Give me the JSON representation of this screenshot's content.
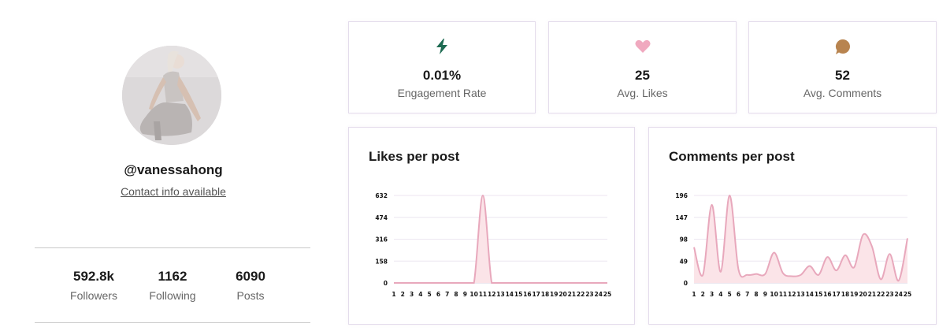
{
  "profile": {
    "handle": "@vanessahong",
    "contact_link": "Contact info available",
    "stats": [
      {
        "value": "592.8k",
        "label": "Followers"
      },
      {
        "value": "1162",
        "label": "Following"
      },
      {
        "value": "6090",
        "label": "Posts"
      }
    ]
  },
  "metrics": [
    {
      "icon": "lightning-icon",
      "value": "0.01%",
      "label": "Engagement Rate",
      "color": "#1e6b52"
    },
    {
      "icon": "heart-icon",
      "value": "25",
      "label": "Avg. Likes",
      "color": "#f0a9bf"
    },
    {
      "icon": "speech-bubble-icon",
      "value": "52",
      "label": "Avg. Comments",
      "color": "#b8844f"
    }
  ],
  "chart_data": [
    {
      "type": "area",
      "title": "Likes per post",
      "x": [
        1,
        2,
        3,
        4,
        5,
        6,
        7,
        8,
        9,
        10,
        11,
        12,
        13,
        14,
        15,
        16,
        17,
        18,
        19,
        20,
        21,
        22,
        23,
        24,
        25
      ],
      "y_ticks": [
        0,
        158,
        316,
        474,
        632
      ],
      "ylim": [
        0,
        632
      ],
      "series": [
        {
          "values": [
            0,
            0,
            0,
            0,
            0,
            0,
            0,
            0,
            0,
            0,
            632,
            0,
            0,
            0,
            0,
            0,
            0,
            0,
            0,
            0,
            0,
            0,
            0,
            0,
            0
          ]
        }
      ],
      "grid": true,
      "line_color": "#e8a8bc",
      "fill_color": "#fbe4e8"
    },
    {
      "type": "area",
      "title": "Comments per post",
      "x": [
        1,
        2,
        3,
        4,
        5,
        6,
        7,
        8,
        9,
        10,
        11,
        12,
        13,
        14,
        15,
        16,
        17,
        18,
        19,
        20,
        21,
        22,
        23,
        24,
        25
      ],
      "y_ticks": [
        0,
        49,
        98,
        147,
        196
      ],
      "ylim": [
        0,
        196
      ],
      "series": [
        {
          "values": [
            80,
            18,
            175,
            25,
            196,
            30,
            18,
            20,
            20,
            68,
            22,
            15,
            18,
            38,
            18,
            58,
            28,
            62,
            35,
            108,
            82,
            8,
            65,
            5,
            100
          ]
        }
      ],
      "grid": true,
      "line_color": "#e8a8bc",
      "fill_color": "#fbe4e8"
    }
  ]
}
